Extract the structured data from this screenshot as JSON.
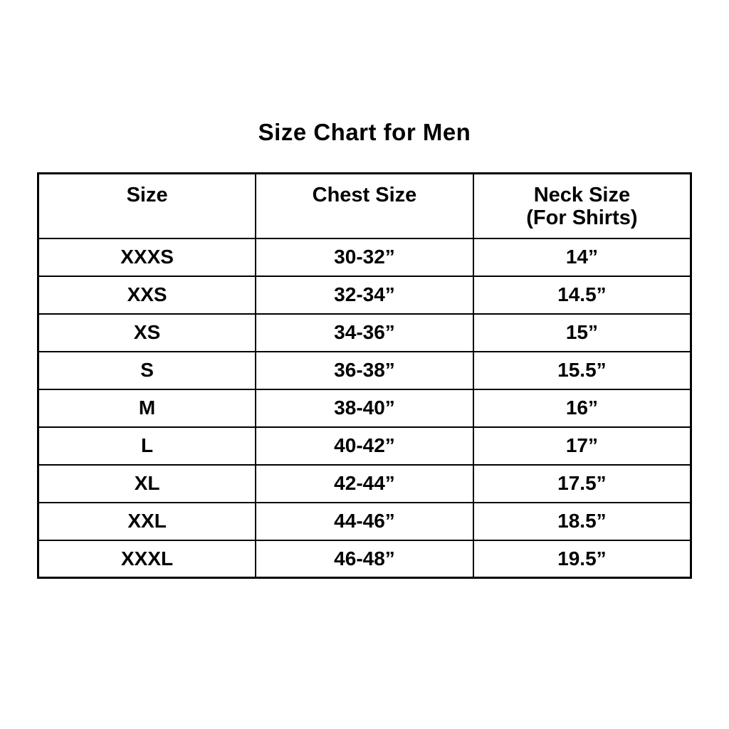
{
  "page": {
    "background_color": "#ffffff",
    "text_color": "#000000",
    "border_color": "#000000"
  },
  "chart_data": {
    "type": "table",
    "title": "Size Chart for Men",
    "columns": [
      "Size",
      "Chest Size",
      "Neck Size\n(For Shirts)"
    ],
    "rows": [
      [
        "XXXS",
        "30-32”",
        "14”"
      ],
      [
        "XXS",
        "32-34”",
        "14.5”"
      ],
      [
        "XS",
        "34-36”",
        "15”"
      ],
      [
        "S",
        "36-38”",
        "15.5”"
      ],
      [
        "M",
        "38-40”",
        "16”"
      ],
      [
        "L",
        "40-42”",
        "17”"
      ],
      [
        "XL",
        "42-44”",
        "17.5”"
      ],
      [
        "XXL",
        "44-46”",
        "18.5”"
      ],
      [
        "XXXL",
        "46-48”",
        "19.5”"
      ]
    ],
    "layout": {
      "column_widths_equal": true,
      "grid": "full-borders",
      "legend": "none",
      "title_position": "top-center"
    }
  }
}
